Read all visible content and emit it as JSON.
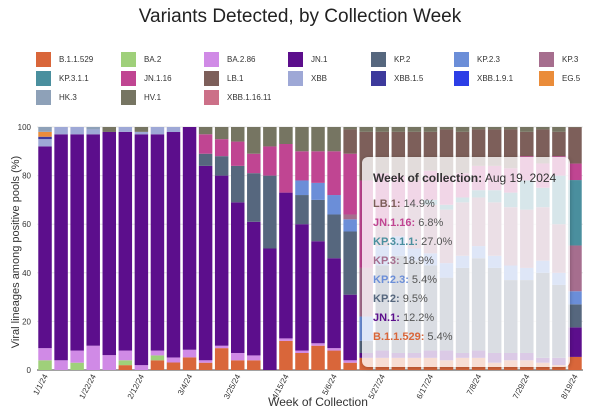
{
  "chart_data": {
    "type": "bar",
    "stacked": true,
    "title": "Variants Detected, by Collection Week",
    "xlabel": "Week of Collection",
    "ylabel": "Viral lineages among positive pools (%)",
    "ylim": [
      0,
      100
    ],
    "yticks": [
      0,
      20,
      40,
      60,
      80,
      100
    ],
    "grid": true,
    "legend_position": "top",
    "x_tick_labels": [
      "1/1/24",
      "1/22/24",
      "2/12/24",
      "3/4/24",
      "3/25/24",
      "4/15/24",
      "5/6/24",
      "5/27/24",
      "6/17/24",
      "7/8/24",
      "7/29/24",
      "8/19/24"
    ],
    "categories": [
      "1/1/24",
      "1/8/24",
      "1/15/24",
      "1/22/24",
      "1/29/24",
      "2/5/24",
      "2/12/24",
      "2/19/24",
      "2/26/24",
      "3/4/24",
      "3/11/24",
      "3/18/24",
      "3/25/24",
      "4/1/24",
      "4/8/24",
      "4/15/24",
      "4/22/24",
      "4/29/24",
      "5/6/24",
      "5/13/24",
      "5/20/24",
      "5/27/24",
      "6/3/24",
      "6/10/24",
      "6/17/24",
      "6/24/24",
      "7/1/24",
      "7/8/24",
      "7/15/24",
      "7/22/24",
      "7/29/24",
      "8/5/24",
      "8/12/24",
      "8/19/24"
    ],
    "series": [
      {
        "name": "B.1.1.529",
        "color": "#d9663a",
        "values": [
          0,
          0,
          0,
          0,
          0,
          2,
          0,
          4,
          3,
          5,
          3,
          9,
          4,
          4,
          0,
          12,
          7,
          10,
          8,
          3,
          5,
          5,
          5,
          5,
          5,
          4,
          5,
          5,
          3,
          4,
          4,
          3,
          2,
          5.4
        ]
      },
      {
        "name": "BA.2",
        "color": "#9fd07a",
        "values": [
          4,
          0,
          3,
          0,
          0,
          2,
          0,
          2,
          0,
          0,
          0,
          0,
          0,
          0,
          0,
          0,
          0,
          0,
          0,
          0,
          0,
          0,
          0,
          0,
          0,
          0,
          0,
          0,
          0,
          0,
          0,
          0,
          0,
          0
        ]
      },
      {
        "name": "BA.2.86",
        "color": "#d08ae6",
        "values": [
          5,
          4,
          5,
          10,
          6,
          4,
          2,
          2,
          2,
          3,
          1,
          1,
          3,
          2,
          0,
          1,
          1,
          1,
          1,
          1,
          0,
          0,
          0,
          0,
          0,
          0,
          0,
          0,
          0,
          0,
          0,
          0,
          0,
          0
        ]
      },
      {
        "name": "JN.1",
        "color": "#5c0e8c",
        "values": [
          83,
          93,
          89,
          87,
          90,
          90,
          95,
          89,
          90,
          88,
          80,
          70,
          62,
          55,
          50,
          60,
          52,
          42,
          37,
          27,
          2,
          3,
          2,
          2,
          3,
          4,
          2,
          3,
          4,
          3,
          3,
          2,
          3,
          12.2
        ]
      },
      {
        "name": "KP.2",
        "color": "#56677e",
        "values": [
          0,
          0,
          0,
          0,
          0,
          0,
          0,
          0,
          0,
          0,
          5,
          8,
          15,
          20,
          30,
          0,
          12,
          17,
          18,
          26,
          5,
          35,
          40,
          38,
          35,
          30,
          35,
          38,
          35,
          30,
          30,
          35,
          30,
          9.5
        ]
      },
      {
        "name": "KP.2.3",
        "color": "#6b8ed8",
        "values": [
          0,
          0,
          0,
          0,
          0,
          0,
          0,
          0,
          0,
          0,
          0,
          0,
          0,
          0,
          0,
          0,
          6,
          7,
          8,
          5,
          10,
          8,
          8,
          5,
          5,
          6,
          5,
          5,
          5,
          6,
          5,
          5,
          5,
          5.4
        ]
      },
      {
        "name": "KP.3",
        "color": "#a66e8e",
        "values": [
          0,
          0,
          0,
          0,
          0,
          0,
          0,
          0,
          0,
          0,
          0,
          0,
          0,
          0,
          0,
          0,
          0,
          0,
          0,
          2,
          20,
          10,
          12,
          18,
          20,
          22,
          22,
          20,
          22,
          24,
          24,
          22,
          20,
          18.9
        ]
      },
      {
        "name": "KP.3.1.1",
        "color": "#4a8f9e",
        "values": [
          0,
          0,
          0,
          0,
          0,
          0,
          0,
          0,
          0,
          0,
          0,
          0,
          0,
          0,
          0,
          0,
          0,
          0,
          0,
          0,
          0,
          0,
          0,
          0,
          2,
          2,
          2,
          3,
          5,
          6,
          12,
          8,
          20,
          27.0
        ]
      },
      {
        "name": "JN.1.16",
        "color": "#c04592",
        "values": [
          0,
          0,
          0,
          0,
          0,
          0,
          0,
          0,
          0,
          0,
          8,
          7,
          10,
          8,
          12,
          20,
          12,
          13,
          18,
          25,
          36,
          20,
          13,
          10,
          12,
          12,
          10,
          10,
          10,
          10,
          10,
          10,
          8,
          6.8
        ]
      },
      {
        "name": "LB.1",
        "color": "#7d5f5a",
        "values": [
          0,
          0,
          0,
          0,
          0,
          0,
          0,
          0,
          0,
          0,
          0,
          0,
          0,
          0,
          0,
          0,
          0,
          0,
          0,
          10,
          20,
          17,
          18,
          20,
          16,
          19,
          17,
          15,
          15,
          16,
          10,
          14,
          10,
          14.9
        ]
      },
      {
        "name": "XBB",
        "color": "#9ea8d6",
        "values": [
          3,
          3,
          3,
          2,
          0,
          2,
          1,
          3,
          2,
          0,
          0,
          0,
          0,
          0,
          0,
          0,
          0,
          0,
          0,
          0,
          0,
          0,
          0,
          0,
          0,
          0,
          0,
          0,
          0,
          0,
          0,
          0,
          0,
          0
        ]
      },
      {
        "name": "XBB.1.5",
        "color": "#3d3a9c",
        "values": [
          1,
          0,
          0,
          0,
          0,
          0,
          0,
          0,
          0,
          0,
          0,
          0,
          0,
          0,
          0,
          0,
          0,
          0,
          0,
          0,
          0,
          0,
          0,
          0,
          0,
          0,
          0,
          0,
          0,
          0,
          0,
          0,
          0,
          0
        ]
      },
      {
        "name": "XBB.1.9.1",
        "color": "#2c3ee6",
        "values": [
          0,
          0,
          0,
          0,
          0,
          0,
          0,
          0,
          0,
          0,
          0,
          0,
          0,
          0,
          0,
          0,
          0,
          0,
          0,
          0,
          0,
          0,
          0,
          0,
          0,
          0,
          0,
          0,
          0,
          0,
          0,
          0,
          0,
          0
        ]
      },
      {
        "name": "EG.5",
        "color": "#ea8c3a",
        "values": [
          2,
          0,
          0,
          0,
          0,
          0,
          0,
          0,
          0,
          0,
          0,
          0,
          0,
          0,
          0,
          0,
          0,
          0,
          0,
          0,
          0,
          0,
          0,
          0,
          0,
          0,
          0,
          0,
          0,
          0,
          0,
          0,
          0,
          0
        ]
      },
      {
        "name": "HK.3",
        "color": "#8ea1b8",
        "values": [
          2,
          0,
          0,
          1,
          0,
          0,
          0,
          0,
          0,
          0,
          0,
          0,
          0,
          0,
          0,
          0,
          0,
          0,
          0,
          0,
          0,
          0,
          0,
          0,
          0,
          0,
          0,
          0,
          0,
          0,
          0,
          0,
          0,
          0
        ]
      },
      {
        "name": "HV.1",
        "color": "#767562",
        "values": [
          0,
          0,
          0,
          0,
          2,
          0,
          2,
          0,
          0,
          0,
          3,
          5,
          6,
          11,
          8,
          7,
          10,
          10,
          10,
          1,
          2,
          2,
          2,
          2,
          2,
          1,
          2,
          1,
          1,
          1,
          2,
          1,
          2,
          0.2
        ]
      },
      {
        "name": "XBB.1.16.11",
        "color": "#cc7088",
        "values": [
          0,
          0,
          0,
          0,
          0,
          0,
          0,
          0,
          0,
          0,
          0,
          0,
          0,
          0,
          0,
          0,
          0,
          0,
          0,
          0,
          0,
          0,
          0,
          0,
          0,
          0,
          0,
          0,
          0,
          0,
          0,
          0,
          0,
          0
        ]
      }
    ]
  },
  "legend_entries": [
    {
      "label": "B.1.1.529",
      "color": "#d9663a"
    },
    {
      "label": "BA.2",
      "color": "#9fd07a"
    },
    {
      "label": "BA.2.86",
      "color": "#d08ae6"
    },
    {
      "label": "JN.1",
      "color": "#5c0e8c"
    },
    {
      "label": "KP.2",
      "color": "#56677e"
    },
    {
      "label": "KP.2.3",
      "color": "#6b8ed8"
    },
    {
      "label": "KP.3",
      "color": "#a66e8e"
    },
    {
      "label": "KP.3.1.1",
      "color": "#4a8f9e"
    },
    {
      "label": "JN.1.16",
      "color": "#c04592"
    },
    {
      "label": "LB.1",
      "color": "#7d5f5a"
    },
    {
      "label": "XBB",
      "color": "#9ea8d6"
    },
    {
      "label": "XBB.1.5",
      "color": "#3d3a9c"
    },
    {
      "label": "XBB.1.9.1",
      "color": "#2c3ee6"
    },
    {
      "label": "EG.5",
      "color": "#ea8c3a"
    },
    {
      "label": "HK.3",
      "color": "#8ea1b8"
    },
    {
      "label": "HV.1",
      "color": "#767562"
    },
    {
      "label": "XBB.1.16.11",
      "color": "#cc7088"
    }
  ],
  "tooltip": {
    "header_label": "Week of collection:",
    "header_value": "Aug 19, 2024",
    "rows": [
      {
        "label": "LB.1:",
        "value": "14.9%",
        "color": "#7d5f5a"
      },
      {
        "label": "JN.1.16:",
        "value": "6.8%",
        "color": "#c04592"
      },
      {
        "label": "KP.3.1.1:",
        "value": "27.0%",
        "color": "#4a8f9e"
      },
      {
        "label": "KP.3:",
        "value": "18.9%",
        "color": "#a66e8e"
      },
      {
        "label": "KP.2.3:",
        "value": "5.4%",
        "color": "#6b8ed8"
      },
      {
        "label": "KP.2:",
        "value": "9.5%",
        "color": "#56677e"
      },
      {
        "label": "JN.1:",
        "value": "12.2%",
        "color": "#5c0e8c"
      },
      {
        "label": "B.1.1.529:",
        "value": "5.4%",
        "color": "#d9663a"
      }
    ]
  }
}
